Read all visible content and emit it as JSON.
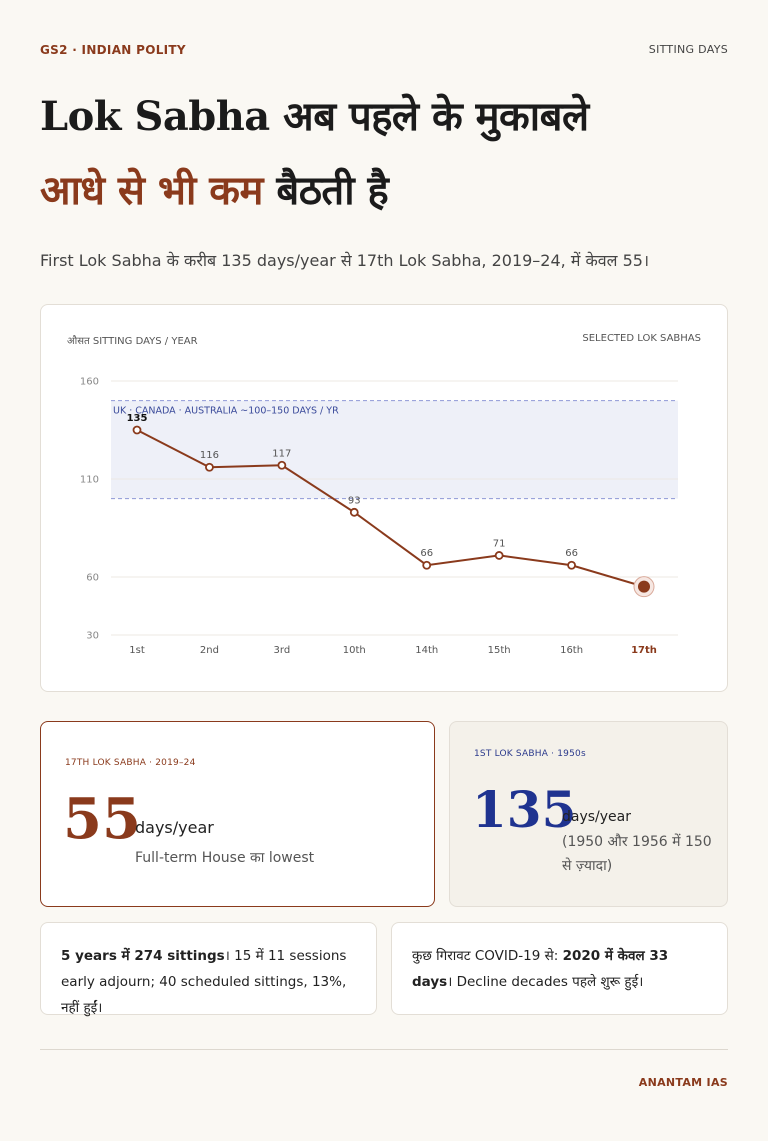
{
  "header": {
    "kicker": "GS2 · INDIAN POLITY",
    "topic": "SITTING DAYS"
  },
  "headline": {
    "line1": "Lok Sabha अब पहले के मुकाबले",
    "line2_accent": "आधे से भी कम",
    "line2_rest": " बैठती है"
  },
  "deck": "First Lok Sabha के करीब 135 days/year से 17th Lok Sabha, 2019–24, में केवल 55।",
  "chart_card": {
    "label_left": "औसत SITTING DAYS / YEAR",
    "label_right": "SELECTED LOK SABHAS"
  },
  "chart_data": {
    "type": "line",
    "categories": [
      "1st",
      "2nd",
      "3rd",
      "10th",
      "14th",
      "15th",
      "16th",
      "17th"
    ],
    "values": [
      135,
      116,
      117,
      93,
      66,
      71,
      66,
      55
    ],
    "data_labels": [
      "135",
      "116",
      "117",
      "93",
      "66",
      "71",
      "66",
      ""
    ],
    "y_ticks": [
      30,
      60,
      110,
      160
    ],
    "ylim": [
      30,
      160
    ],
    "band": {
      "from": 100,
      "to": 150,
      "label": "UK · CANADA · AUSTRALIA ~100–150 DAYS / YR"
    },
    "highlight_category": "17th",
    "grid": true,
    "colors": {
      "line": "#8a3a1c",
      "band": "#eef0f8",
      "band_border": "#8e98d6"
    }
  },
  "stats": {
    "a": {
      "label": "17TH LOK SABHA · 2019–24",
      "value": "55",
      "unit": "days/year",
      "sub": "Full-term House का lowest"
    },
    "b": {
      "label": "1ST LOK SABHA · 1950s",
      "value": "135",
      "unit": "days/year",
      "sub": "(1950 और 1956 में 150 से ज़्यादा)"
    }
  },
  "notes": {
    "a_bold": "5 years में 274 sittings",
    "a_rest": "। 15 में 11 sessions early adjourn; 40 scheduled sittings, 13%, नहीं हुईं।",
    "b_pre": "कुछ गिरावट COVID-19 से: ",
    "b_bold": "2020 में केवल 33 days",
    "b_rest": "। Decline decades पहले शुरू हुई।"
  },
  "footer": "ANANTAM IAS"
}
